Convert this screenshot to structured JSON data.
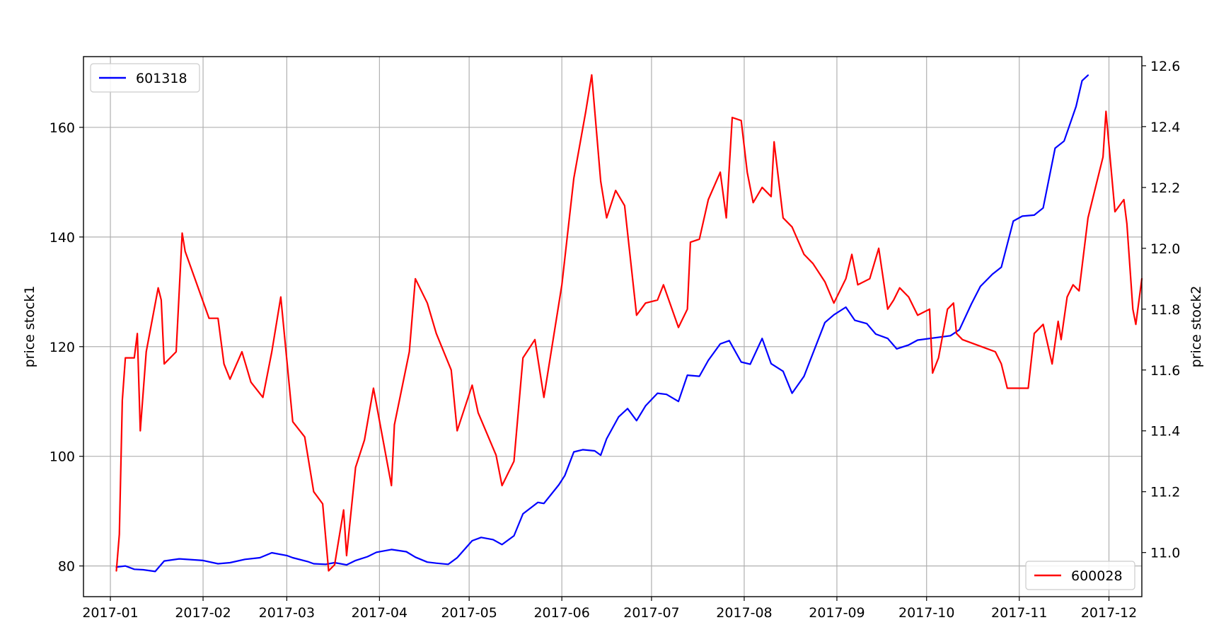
{
  "chart_data": {
    "type": "line",
    "title": "",
    "xlabel": "",
    "ylabel_left": "price stock1",
    "ylabel_right": "price stock2",
    "grid": true,
    "x_ticks": [
      "2017-01",
      "2017-02",
      "2017-03",
      "2017-04",
      "2017-05",
      "2017-06",
      "2017-07",
      "2017-08",
      "2017-09",
      "2017-10",
      "2017-11",
      "2017-12"
    ],
    "x_range": [
      "2016-12-23",
      "2017-12-12"
    ],
    "y_left": {
      "ticks": [
        80,
        100,
        120,
        140,
        160
      ],
      "range": [
        74.4,
        172.9
      ]
    },
    "y_right": {
      "ticks": [
        "11.0",
        "11.2",
        "11.4",
        "11.6",
        "11.8",
        "12.0",
        "12.2",
        "12.4",
        "12.6"
      ],
      "range": [
        10.855,
        12.63
      ]
    },
    "series": [
      {
        "name": "601318",
        "axis": "left",
        "color": "#0000ff",
        "legend_position": "upper-left",
        "points": [
          [
            "2017-01-03",
            79.8
          ],
          [
            "2017-01-06",
            80.0
          ],
          [
            "2017-01-09",
            79.4
          ],
          [
            "2017-01-12",
            79.3
          ],
          [
            "2017-01-16",
            79.0
          ],
          [
            "2017-01-19",
            80.9
          ],
          [
            "2017-01-24",
            81.3
          ],
          [
            "2017-02-01",
            81.0
          ],
          [
            "2017-02-06",
            80.4
          ],
          [
            "2017-02-10",
            80.6
          ],
          [
            "2017-02-15",
            81.2
          ],
          [
            "2017-02-20",
            81.5
          ],
          [
            "2017-02-24",
            82.4
          ],
          [
            "2017-03-01",
            81.9
          ],
          [
            "2017-03-03",
            81.5
          ],
          [
            "2017-03-08",
            80.8
          ],
          [
            "2017-03-10",
            80.4
          ],
          [
            "2017-03-14",
            80.3
          ],
          [
            "2017-03-17",
            80.6
          ],
          [
            "2017-03-21",
            80.2
          ],
          [
            "2017-03-24",
            81.0
          ],
          [
            "2017-03-28",
            81.7
          ],
          [
            "2017-03-31",
            82.5
          ],
          [
            "2017-04-05",
            83.0
          ],
          [
            "2017-04-10",
            82.6
          ],
          [
            "2017-04-13",
            81.6
          ],
          [
            "2017-04-17",
            80.7
          ],
          [
            "2017-04-20",
            80.5
          ],
          [
            "2017-04-24",
            80.3
          ],
          [
            "2017-04-27",
            81.5
          ],
          [
            "2017-05-02",
            84.6
          ],
          [
            "2017-05-05",
            85.2
          ],
          [
            "2017-05-09",
            84.8
          ],
          [
            "2017-05-12",
            83.9
          ],
          [
            "2017-05-16",
            85.5
          ],
          [
            "2017-05-19",
            89.5
          ],
          [
            "2017-05-24",
            91.6
          ],
          [
            "2017-05-26",
            91.4
          ],
          [
            "2017-05-31",
            94.8
          ],
          [
            "2017-06-02",
            96.5
          ],
          [
            "2017-06-05",
            100.8
          ],
          [
            "2017-06-08",
            101.2
          ],
          [
            "2017-06-12",
            101.0
          ],
          [
            "2017-06-14",
            100.2
          ],
          [
            "2017-06-16",
            103.2
          ],
          [
            "2017-06-20",
            107.2
          ],
          [
            "2017-06-23",
            108.7
          ],
          [
            "2017-06-26",
            106.5
          ],
          [
            "2017-06-29",
            109.2
          ],
          [
            "2017-07-03",
            111.5
          ],
          [
            "2017-07-06",
            111.3
          ],
          [
            "2017-07-10",
            110.0
          ],
          [
            "2017-07-13",
            114.8
          ],
          [
            "2017-07-17",
            114.6
          ],
          [
            "2017-07-20",
            117.5
          ],
          [
            "2017-07-24",
            120.5
          ],
          [
            "2017-07-27",
            121.1
          ],
          [
            "2017-07-31",
            117.2
          ],
          [
            "2017-08-03",
            116.8
          ],
          [
            "2017-08-07",
            121.5
          ],
          [
            "2017-08-10",
            116.9
          ],
          [
            "2017-08-14",
            115.5
          ],
          [
            "2017-08-17",
            111.5
          ],
          [
            "2017-08-21",
            114.6
          ],
          [
            "2017-08-24",
            118.8
          ],
          [
            "2017-08-28",
            124.4
          ],
          [
            "2017-08-31",
            125.8
          ],
          [
            "2017-09-04",
            127.2
          ],
          [
            "2017-09-07",
            124.8
          ],
          [
            "2017-09-11",
            124.2
          ],
          [
            "2017-09-14",
            122.3
          ],
          [
            "2017-09-18",
            121.5
          ],
          [
            "2017-09-21",
            119.6
          ],
          [
            "2017-09-25",
            120.3
          ],
          [
            "2017-09-28",
            121.2
          ],
          [
            "2017-10-09",
            122.0
          ],
          [
            "2017-10-12",
            123.1
          ],
          [
            "2017-10-16",
            127.8
          ],
          [
            "2017-10-19",
            131.0
          ],
          [
            "2017-10-23",
            133.2
          ],
          [
            "2017-10-26",
            134.5
          ],
          [
            "2017-10-30",
            142.9
          ],
          [
            "2017-11-02",
            143.8
          ],
          [
            "2017-11-06",
            144.0
          ],
          [
            "2017-11-09",
            145.3
          ],
          [
            "2017-11-13",
            156.2
          ],
          [
            "2017-11-16",
            157.5
          ],
          [
            "2017-11-20",
            163.8
          ],
          [
            "2017-11-22",
            168.5
          ],
          [
            "2017-11-24",
            169.5
          ]
        ]
      },
      {
        "name": "600028",
        "axis": "right",
        "color": "#ff0000",
        "legend_position": "lower-right",
        "points": [
          [
            "2017-01-03",
            10.94
          ],
          [
            "2017-01-04",
            11.06
          ],
          [
            "2017-01-05",
            11.5
          ],
          [
            "2017-01-06",
            11.64
          ],
          [
            "2017-01-09",
            11.64
          ],
          [
            "2017-01-10",
            11.72
          ],
          [
            "2017-01-11",
            11.4
          ],
          [
            "2017-01-13",
            11.66
          ],
          [
            "2017-01-17",
            11.87
          ],
          [
            "2017-01-18",
            11.83
          ],
          [
            "2017-01-19",
            11.62
          ],
          [
            "2017-01-23",
            11.66
          ],
          [
            "2017-01-25",
            12.05
          ],
          [
            "2017-01-26",
            11.99
          ],
          [
            "2017-02-03",
            11.77
          ],
          [
            "2017-02-06",
            11.77
          ],
          [
            "2017-02-08",
            11.62
          ],
          [
            "2017-02-10",
            11.57
          ],
          [
            "2017-02-14",
            11.66
          ],
          [
            "2017-02-17",
            11.56
          ],
          [
            "2017-02-21",
            11.51
          ],
          [
            "2017-02-24",
            11.66
          ],
          [
            "2017-02-27",
            11.84
          ],
          [
            "2017-03-03",
            11.43
          ],
          [
            "2017-03-07",
            11.38
          ],
          [
            "2017-03-10",
            11.2
          ],
          [
            "2017-03-13",
            11.16
          ],
          [
            "2017-03-15",
            10.94
          ],
          [
            "2017-03-17",
            10.96
          ],
          [
            "2017-03-20",
            11.14
          ],
          [
            "2017-03-21",
            10.99
          ],
          [
            "2017-03-24",
            11.28
          ],
          [
            "2017-03-27",
            11.37
          ],
          [
            "2017-03-30",
            11.54
          ],
          [
            "2017-04-05",
            11.22
          ],
          [
            "2017-04-06",
            11.42
          ],
          [
            "2017-04-11",
            11.66
          ],
          [
            "2017-04-13",
            11.9
          ],
          [
            "2017-04-17",
            11.82
          ],
          [
            "2017-04-20",
            11.72
          ],
          [
            "2017-04-25",
            11.6
          ],
          [
            "2017-04-27",
            11.4
          ],
          [
            "2017-05-02",
            11.55
          ],
          [
            "2017-05-04",
            11.46
          ],
          [
            "2017-05-10",
            11.32
          ],
          [
            "2017-05-12",
            11.22
          ],
          [
            "2017-05-16",
            11.3
          ],
          [
            "2017-05-19",
            11.64
          ],
          [
            "2017-05-23",
            11.7
          ],
          [
            "2017-05-26",
            11.51
          ],
          [
            "2017-06-01",
            11.88
          ],
          [
            "2017-06-05",
            12.23
          ],
          [
            "2017-06-09",
            12.45
          ],
          [
            "2017-06-11",
            12.57
          ],
          [
            "2017-06-14",
            12.22
          ],
          [
            "2017-06-16",
            12.1
          ],
          [
            "2017-06-19",
            12.19
          ],
          [
            "2017-06-22",
            12.14
          ],
          [
            "2017-06-26",
            11.78
          ],
          [
            "2017-06-29",
            11.82
          ],
          [
            "2017-07-03",
            11.83
          ],
          [
            "2017-07-05",
            11.88
          ],
          [
            "2017-07-10",
            11.74
          ],
          [
            "2017-07-13",
            11.8
          ],
          [
            "2017-07-14",
            12.02
          ],
          [
            "2017-07-17",
            12.03
          ],
          [
            "2017-07-20",
            12.16
          ],
          [
            "2017-07-24",
            12.25
          ],
          [
            "2017-07-26",
            12.1
          ],
          [
            "2017-07-28",
            12.43
          ],
          [
            "2017-07-31",
            12.42
          ],
          [
            "2017-08-02",
            12.25
          ],
          [
            "2017-08-04",
            12.15
          ],
          [
            "2017-08-07",
            12.2
          ],
          [
            "2017-08-10",
            12.17
          ],
          [
            "2017-08-11",
            12.35
          ],
          [
            "2017-08-14",
            12.1
          ],
          [
            "2017-08-17",
            12.07
          ],
          [
            "2017-08-21",
            11.98
          ],
          [
            "2017-08-24",
            11.95
          ],
          [
            "2017-08-28",
            11.89
          ],
          [
            "2017-08-31",
            11.82
          ],
          [
            "2017-09-04",
            11.9
          ],
          [
            "2017-09-06",
            11.98
          ],
          [
            "2017-09-08",
            11.88
          ],
          [
            "2017-09-12",
            11.9
          ],
          [
            "2017-09-15",
            12.0
          ],
          [
            "2017-09-18",
            11.8
          ],
          [
            "2017-09-20",
            11.83
          ],
          [
            "2017-09-22",
            11.87
          ],
          [
            "2017-09-25",
            11.84
          ],
          [
            "2017-09-28",
            11.78
          ],
          [
            "2017-10-02",
            11.8
          ],
          [
            "2017-10-03",
            11.59
          ],
          [
            "2017-10-05",
            11.64
          ],
          [
            "2017-10-08",
            11.8
          ],
          [
            "2017-10-10",
            11.82
          ],
          [
            "2017-10-11",
            11.72
          ],
          [
            "2017-10-13",
            11.7
          ],
          [
            "2017-10-24",
            11.66
          ],
          [
            "2017-10-26",
            11.62
          ],
          [
            "2017-10-28",
            11.54
          ],
          [
            "2017-11-01",
            11.54
          ],
          [
            "2017-11-04",
            11.54
          ],
          [
            "2017-11-06",
            11.72
          ],
          [
            "2017-11-09",
            11.75
          ],
          [
            "2017-11-12",
            11.62
          ],
          [
            "2017-11-14",
            11.76
          ],
          [
            "2017-11-15",
            11.7
          ],
          [
            "2017-11-17",
            11.84
          ],
          [
            "2017-11-19",
            11.88
          ],
          [
            "2017-11-21",
            11.86
          ],
          [
            "2017-11-24",
            12.1
          ],
          [
            "2017-11-27",
            12.22
          ],
          [
            "2017-11-29",
            12.3
          ],
          [
            "2017-11-30",
            12.45
          ],
          [
            "2017-12-01",
            12.34
          ],
          [
            "2017-12-03",
            12.12
          ],
          [
            "2017-12-06",
            12.16
          ],
          [
            "2017-12-07",
            12.08
          ],
          [
            "2017-12-09",
            11.8
          ],
          [
            "2017-12-10",
            11.75
          ],
          [
            "2017-12-12",
            11.9
          ]
        ]
      }
    ]
  }
}
